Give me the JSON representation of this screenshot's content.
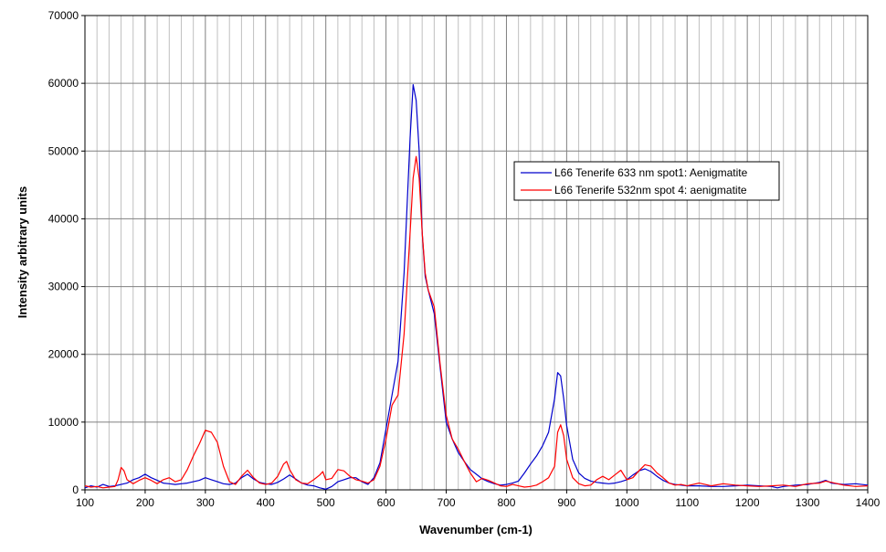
{
  "chart_data": {
    "type": "line",
    "title": "",
    "xlabel": "Wavenumber (cm-1)",
    "ylabel": "Intensity arbitrary units",
    "xlim": [
      100,
      1400
    ],
    "ylim": [
      0,
      70000
    ],
    "x_ticks": [
      100,
      200,
      300,
      400,
      500,
      600,
      700,
      800,
      900,
      1000,
      1100,
      1200,
      1300,
      1400
    ],
    "y_ticks": [
      0,
      10000,
      20000,
      30000,
      40000,
      50000,
      60000,
      70000
    ],
    "x_minor_step": 20,
    "grid": true,
    "legend_position": "center-right",
    "series": [
      {
        "name": "L66 Tenerife 633 nm spot1: Aenigmatite",
        "color": "#0000cc",
        "points": [
          [
            100,
            300
          ],
          [
            110,
            600
          ],
          [
            120,
            400
          ],
          [
            130,
            800
          ],
          [
            140,
            500
          ],
          [
            150,
            600
          ],
          [
            160,
            800
          ],
          [
            170,
            1000
          ],
          [
            180,
            1500
          ],
          [
            190,
            1800
          ],
          [
            200,
            2300
          ],
          [
            210,
            1800
          ],
          [
            220,
            1400
          ],
          [
            230,
            1000
          ],
          [
            240,
            900
          ],
          [
            250,
            800
          ],
          [
            260,
            900
          ],
          [
            270,
            1000
          ],
          [
            280,
            1200
          ],
          [
            290,
            1400
          ],
          [
            300,
            1800
          ],
          [
            310,
            1500
          ],
          [
            320,
            1200
          ],
          [
            330,
            900
          ],
          [
            340,
            800
          ],
          [
            350,
            1000
          ],
          [
            360,
            1800
          ],
          [
            370,
            2300
          ],
          [
            380,
            1600
          ],
          [
            390,
            1100
          ],
          [
            400,
            900
          ],
          [
            410,
            800
          ],
          [
            420,
            1100
          ],
          [
            430,
            1600
          ],
          [
            440,
            2200
          ],
          [
            450,
            1600
          ],
          [
            460,
            1000
          ],
          [
            470,
            700
          ],
          [
            480,
            600
          ],
          [
            490,
            300
          ],
          [
            500,
            100
          ],
          [
            510,
            500
          ],
          [
            520,
            1200
          ],
          [
            530,
            1500
          ],
          [
            540,
            1800
          ],
          [
            550,
            1800
          ],
          [
            560,
            1200
          ],
          [
            570,
            800
          ],
          [
            580,
            1800
          ],
          [
            590,
            4000
          ],
          [
            600,
            9000
          ],
          [
            610,
            14000
          ],
          [
            620,
            19000
          ],
          [
            630,
            32000
          ],
          [
            640,
            52000
          ],
          [
            645,
            59800
          ],
          [
            650,
            57500
          ],
          [
            655,
            50000
          ],
          [
            660,
            38000
          ],
          [
            665,
            31500
          ],
          [
            670,
            29500
          ],
          [
            680,
            26000
          ],
          [
            690,
            18000
          ],
          [
            700,
            10000
          ],
          [
            710,
            7500
          ],
          [
            720,
            5500
          ],
          [
            730,
            4200
          ],
          [
            740,
            3000
          ],
          [
            750,
            2300
          ],
          [
            760,
            1600
          ],
          [
            770,
            1200
          ],
          [
            780,
            900
          ],
          [
            790,
            700
          ],
          [
            800,
            800
          ],
          [
            810,
            1000
          ],
          [
            820,
            1300
          ],
          [
            830,
            2500
          ],
          [
            840,
            3800
          ],
          [
            850,
            5000
          ],
          [
            860,
            6500
          ],
          [
            870,
            8500
          ],
          [
            880,
            13500
          ],
          [
            885,
            17300
          ],
          [
            890,
            16800
          ],
          [
            895,
            13500
          ],
          [
            900,
            9500
          ],
          [
            910,
            4500
          ],
          [
            920,
            2500
          ],
          [
            930,
            1700
          ],
          [
            940,
            1300
          ],
          [
            950,
            1100
          ],
          [
            960,
            1000
          ],
          [
            970,
            900
          ],
          [
            980,
            1000
          ],
          [
            990,
            1200
          ],
          [
            1000,
            1500
          ],
          [
            1010,
            2200
          ],
          [
            1020,
            2800
          ],
          [
            1030,
            3100
          ],
          [
            1040,
            2700
          ],
          [
            1050,
            2000
          ],
          [
            1060,
            1400
          ],
          [
            1070,
            1000
          ],
          [
            1080,
            800
          ],
          [
            1090,
            700
          ],
          [
            1100,
            600
          ],
          [
            1120,
            600
          ],
          [
            1140,
            500
          ],
          [
            1160,
            500
          ],
          [
            1180,
            600
          ],
          [
            1200,
            700
          ],
          [
            1220,
            600
          ],
          [
            1240,
            500
          ],
          [
            1250,
            300
          ],
          [
            1260,
            500
          ],
          [
            1280,
            700
          ],
          [
            1300,
            800
          ],
          [
            1320,
            1100
          ],
          [
            1330,
            1400
          ],
          [
            1340,
            1000
          ],
          [
            1360,
            800
          ],
          [
            1380,
            900
          ],
          [
            1400,
            700
          ]
        ]
      },
      {
        "name": "L66 Tenerife 532nm spot 4: aenigmatite",
        "color": "#ff0000",
        "points": [
          [
            100,
            600
          ],
          [
            110,
            400
          ],
          [
            120,
            500
          ],
          [
            130,
            300
          ],
          [
            140,
            400
          ],
          [
            150,
            500
          ],
          [
            155,
            1500
          ],
          [
            160,
            3300
          ],
          [
            165,
            2800
          ],
          [
            170,
            1500
          ],
          [
            180,
            900
          ],
          [
            190,
            1400
          ],
          [
            200,
            1800
          ],
          [
            210,
            1400
          ],
          [
            220,
            900
          ],
          [
            230,
            1500
          ],
          [
            240,
            1800
          ],
          [
            250,
            1200
          ],
          [
            260,
            1500
          ],
          [
            270,
            3000
          ],
          [
            280,
            5000
          ],
          [
            290,
            6800
          ],
          [
            300,
            8800
          ],
          [
            310,
            8500
          ],
          [
            320,
            7000
          ],
          [
            330,
            3500
          ],
          [
            340,
            1200
          ],
          [
            350,
            800
          ],
          [
            360,
            2000
          ],
          [
            370,
            2900
          ],
          [
            380,
            1800
          ],
          [
            390,
            1000
          ],
          [
            400,
            800
          ],
          [
            410,
            1000
          ],
          [
            420,
            2000
          ],
          [
            430,
            3800
          ],
          [
            435,
            4200
          ],
          [
            440,
            3000
          ],
          [
            450,
            1500
          ],
          [
            460,
            1000
          ],
          [
            470,
            900
          ],
          [
            480,
            1500
          ],
          [
            490,
            2200
          ],
          [
            495,
            2700
          ],
          [
            500,
            1500
          ],
          [
            510,
            1700
          ],
          [
            520,
            3000
          ],
          [
            530,
            2800
          ],
          [
            540,
            2000
          ],
          [
            550,
            1500
          ],
          [
            560,
            1300
          ],
          [
            570,
            1000
          ],
          [
            580,
            1500
          ],
          [
            590,
            3500
          ],
          [
            600,
            7500
          ],
          [
            610,
            12500
          ],
          [
            620,
            14000
          ],
          [
            630,
            23000
          ],
          [
            640,
            38000
          ],
          [
            645,
            46000
          ],
          [
            650,
            49200
          ],
          [
            655,
            46000
          ],
          [
            660,
            38000
          ],
          [
            665,
            32000
          ],
          [
            670,
            29500
          ],
          [
            680,
            27000
          ],
          [
            690,
            18500
          ],
          [
            700,
            11000
          ],
          [
            710,
            7500
          ],
          [
            720,
            6000
          ],
          [
            730,
            4200
          ],
          [
            740,
            2500
          ],
          [
            750,
            1200
          ],
          [
            760,
            1700
          ],
          [
            770,
            1400
          ],
          [
            780,
            1000
          ],
          [
            790,
            600
          ],
          [
            800,
            500
          ],
          [
            810,
            800
          ],
          [
            820,
            600
          ],
          [
            830,
            400
          ],
          [
            840,
            500
          ],
          [
            850,
            700
          ],
          [
            860,
            1200
          ],
          [
            870,
            1800
          ],
          [
            880,
            3500
          ],
          [
            885,
            8500
          ],
          [
            890,
            9600
          ],
          [
            895,
            8000
          ],
          [
            900,
            4500
          ],
          [
            910,
            1800
          ],
          [
            920,
            900
          ],
          [
            930,
            600
          ],
          [
            940,
            700
          ],
          [
            950,
            1500
          ],
          [
            960,
            2000
          ],
          [
            970,
            1500
          ],
          [
            980,
            2200
          ],
          [
            990,
            2900
          ],
          [
            1000,
            1500
          ],
          [
            1010,
            1800
          ],
          [
            1020,
            2800
          ],
          [
            1030,
            3700
          ],
          [
            1040,
            3500
          ],
          [
            1050,
            2500
          ],
          [
            1060,
            1800
          ],
          [
            1070,
            1000
          ],
          [
            1080,
            700
          ],
          [
            1090,
            800
          ],
          [
            1100,
            600
          ],
          [
            1120,
            1000
          ],
          [
            1140,
            600
          ],
          [
            1160,
            900
          ],
          [
            1180,
            700
          ],
          [
            1200,
            600
          ],
          [
            1220,
            500
          ],
          [
            1240,
            600
          ],
          [
            1260,
            700
          ],
          [
            1280,
            500
          ],
          [
            1300,
            900
          ],
          [
            1320,
            1000
          ],
          [
            1330,
            1300
          ],
          [
            1340,
            1100
          ],
          [
            1360,
            700
          ],
          [
            1380,
            500
          ],
          [
            1400,
            600
          ]
        ]
      }
    ]
  }
}
